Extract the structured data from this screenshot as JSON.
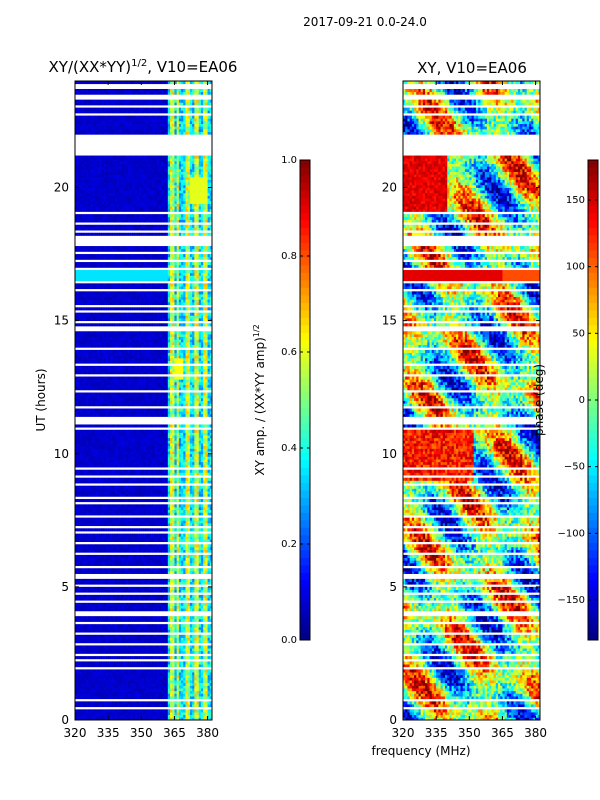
{
  "chart_data": {
    "type": "heatmap",
    "suptitle": "2017-09-21 0.0-24.0",
    "xlabel": "frequency (MHz)",
    "panels": [
      {
        "id": "amp",
        "title_main": "XY/(XX*YY)",
        "title_exp": "1/2",
        "title_tail": ", V10=EA06",
        "ylabel": "UT (hours)",
        "xlim": [
          320,
          382
        ],
        "ylim": [
          0,
          24
        ],
        "xticks": [
          320,
          335,
          350,
          365,
          380
        ],
        "xtick_labels": [
          "320",
          "335",
          "350",
          "365",
          "380"
        ],
        "yticks": [
          0,
          5,
          10,
          15,
          20
        ],
        "ytick_labels": [
          "0",
          "5",
          "10",
          "15",
          "20"
        ],
        "colormap": "jet",
        "colorbar": {
          "label_main": "XY amp. / (XX*YY amp)",
          "label_exp": "1/2",
          "range": [
            0,
            1
          ],
          "ticks": [
            0.0,
            0.2,
            0.4,
            0.6,
            0.8,
            1.0
          ],
          "tick_labels": [
            "0.0",
            "0.2",
            "0.4",
            "0.6",
            "0.8",
            "1.0"
          ]
        }
      },
      {
        "id": "phase",
        "title": "XY, V10=EA06",
        "xlim": [
          320,
          382
        ],
        "ylim": [
          0,
          24
        ],
        "xticks": [
          320,
          335,
          350,
          365,
          380
        ],
        "xtick_labels": [
          "320",
          "335",
          "350",
          "365",
          "380"
        ],
        "yticks": [
          0,
          5,
          10,
          15,
          20
        ],
        "ytick_labels": [
          "0",
          "5",
          "10",
          "15",
          "20"
        ],
        "colormap": "jet",
        "colorbar": {
          "label": "phase (deg)",
          "range": [
            -180,
            180
          ],
          "ticks": [
            150,
            100,
            50,
            0,
            -50,
            -100,
            -150
          ],
          "tick_labels": [
            "150",
            "100",
            "50",
            "0",
            "−50",
            "−100",
            "−150"
          ]
        }
      }
    ],
    "flagged_hours": [
      [
        23.75,
        23.85
      ],
      [
        23.35,
        23.45
      ],
      [
        23.0,
        23.1
      ],
      [
        22.75,
        22.82
      ],
      [
        21.9,
        21.95
      ],
      [
        21.2,
        21.9
      ],
      [
        19.0,
        19.05
      ],
      [
        18.6,
        18.65
      ],
      [
        18.35,
        18.4
      ],
      [
        18.1,
        18.2
      ],
      [
        17.85,
        18.05
      ],
      [
        17.5,
        17.55
      ],
      [
        17.2,
        17.3
      ],
      [
        16.9,
        16.95
      ],
      [
        16.45,
        16.5
      ],
      [
        16.1,
        16.15
      ],
      [
        15.55,
        15.6
      ],
      [
        15.3,
        15.35
      ],
      [
        14.95,
        15.0
      ],
      [
        14.75,
        14.8
      ],
      [
        14.6,
        14.65
      ],
      [
        13.9,
        13.95
      ],
      [
        13.3,
        13.35
      ],
      [
        12.95,
        13.0
      ],
      [
        12.3,
        12.35
      ],
      [
        11.7,
        11.75
      ],
      [
        11.15,
        11.35
      ],
      [
        10.95,
        11.0
      ],
      [
        9.45,
        9.5
      ],
      [
        9.1,
        9.15
      ],
      [
        8.8,
        8.85
      ],
      [
        8.35,
        8.4
      ],
      [
        8.1,
        8.15
      ],
      [
        7.6,
        7.65
      ],
      [
        7.25,
        7.3
      ],
      [
        7.0,
        7.05
      ],
      [
        6.6,
        6.65
      ],
      [
        6.25,
        6.3
      ],
      [
        5.7,
        5.75
      ],
      [
        5.3,
        5.45
      ],
      [
        5.05,
        5.1
      ],
      [
        4.7,
        4.8
      ],
      [
        4.4,
        4.45
      ],
      [
        3.9,
        4.05
      ],
      [
        3.6,
        3.65
      ],
      [
        3.2,
        3.25
      ],
      [
        2.8,
        2.85
      ],
      [
        2.45,
        2.5
      ],
      [
        2.2,
        2.25
      ],
      [
        1.9,
        1.95
      ],
      [
        0.7,
        0.75
      ],
      [
        0.4,
        0.45
      ]
    ],
    "amp_bright_channels_mhz": [
      [
        363,
        365
      ],
      [
        366,
        367
      ],
      [
        370,
        372
      ],
      [
        374,
        376
      ],
      [
        378,
        380
      ]
    ]
  }
}
